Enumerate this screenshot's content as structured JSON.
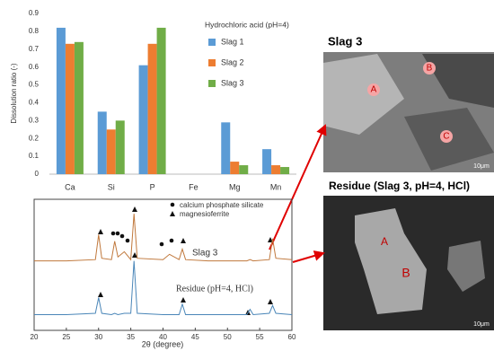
{
  "chart_data": [
    {
      "type": "bar",
      "y_label": "Dissolution ratio (-)",
      "annotation": "Hydrochloric acid (pH=4)",
      "categories": [
        "Ca",
        "Si",
        "P",
        "Fe",
        "Mg",
        "Mn"
      ],
      "series": [
        {
          "name": "Slag 1",
          "color": "#5b9bd5",
          "values": [
            0.82,
            0.35,
            0.61,
            0,
            0.29,
            0.14
          ]
        },
        {
          "name": "Slag 2",
          "color": "#ed7d31",
          "values": [
            0.73,
            0.25,
            0.73,
            0,
            0.07,
            0.05
          ]
        },
        {
          "name": "Slag 3",
          "color": "#70ad47",
          "values": [
            0.74,
            0.3,
            0.82,
            0,
            0.05,
            0.04
          ]
        }
      ],
      "ylim": [
        0,
        0.9
      ],
      "yticks": [
        0,
        0.1,
        0.2,
        0.3,
        0.4,
        0.5,
        0.6,
        0.7,
        0.8,
        0.9
      ],
      "grid": false
    },
    {
      "type": "line",
      "x_label": "2θ (degree)",
      "x": [
        20,
        25,
        29.5,
        30,
        30.5,
        32,
        32.5,
        33,
        34,
        35,
        35.5,
        36,
        40,
        41,
        42.5,
        43,
        43.5,
        47,
        50,
        53,
        53.5,
        54,
        56.5,
        57,
        57.5,
        60
      ],
      "series": [
        {
          "name": "Slag 3",
          "color": "#c0783c",
          "values": [
            53,
            53,
            54,
            73,
            55,
            54,
            68,
            56,
            60,
            54,
            89,
            55,
            54,
            58,
            54,
            62,
            54,
            53,
            53,
            53,
            54,
            53,
            54,
            70,
            55,
            54
          ]
        },
        {
          "name": "Residue (pH=4, HCl)",
          "color": "#4a86b8",
          "values": [
            12,
            12,
            13,
            25,
            13,
            12,
            13,
            12,
            13,
            13,
            53,
            13,
            12,
            12,
            12,
            20,
            12,
            12,
            12,
            12,
            16,
            12,
            13,
            19,
            13,
            12
          ]
        }
      ],
      "xlim": [
        20,
        60
      ],
      "xticks": [
        20,
        25,
        30,
        35,
        40,
        45,
        50,
        55,
        60
      ],
      "ylim": [
        0,
        100
      ],
      "marker_legend": [
        "calcium phosphate silicate",
        "magnesioferrite"
      ]
    }
  ],
  "images": {
    "slag3": {
      "title": "Slag 3",
      "labels": [
        "A",
        "B",
        "C"
      ],
      "scale": "10μm"
    },
    "residue": {
      "title": "Residue (Slag 3, pH=4, HCl)",
      "labels": [
        "A",
        "B"
      ],
      "scale": "10μm"
    }
  }
}
